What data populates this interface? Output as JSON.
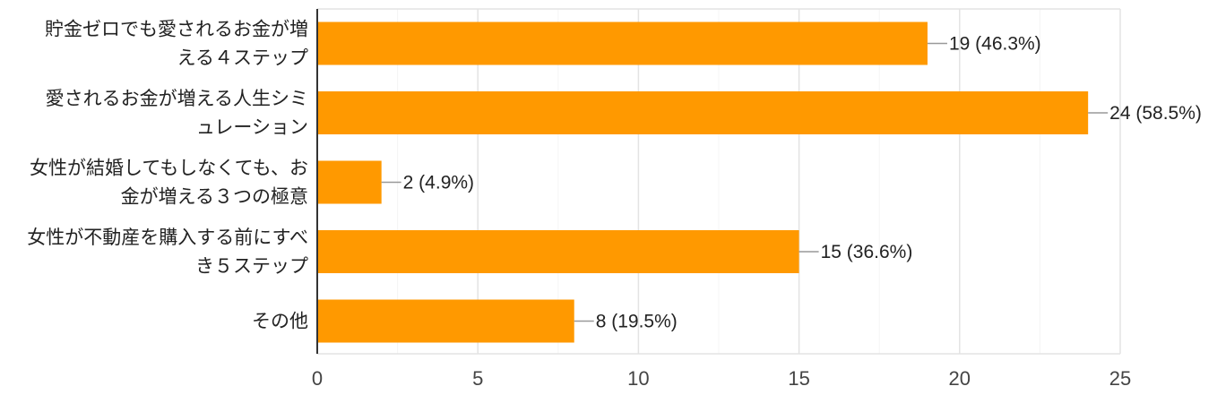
{
  "chart_data": {
    "type": "bar",
    "orientation": "horizontal",
    "categories": [
      [
        "貯金ゼロでも愛されるお金が増",
        "える４ステップ"
      ],
      [
        "愛されるお金が増える人生シミ",
        "ュレーション"
      ],
      [
        "女性が結婚してもしなくても、お",
        "金が増える３つの極意"
      ],
      [
        "女性が不動産を購入する前にすべ",
        "き５ステップ"
      ],
      [
        "その他"
      ]
    ],
    "values": [
      19,
      24,
      2,
      15,
      8
    ],
    "data_labels": [
      "19 (46.3%)",
      "24 (58.5%)",
      "2 (4.9%)",
      "15 (36.6%)",
      "8 (19.5%)"
    ],
    "x_ticks": [
      "0",
      "5",
      "10",
      "15",
      "20",
      "25"
    ],
    "xlim": [
      0,
      25
    ],
    "grid": true,
    "bar_color": "#ff9900",
    "title": "",
    "xlabel": "",
    "ylabel": ""
  }
}
